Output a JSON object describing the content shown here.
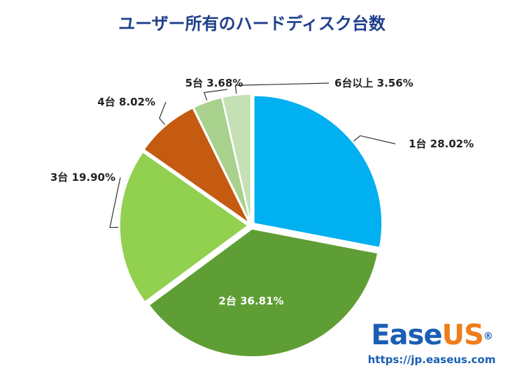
{
  "brand": {
    "logo_part1": "Ease",
    "logo_part2": "US",
    "logo_mark": "®",
    "url": "https://jp.easeus.com",
    "colors": {
      "ease": "#1a5fb4",
      "us": "#ef7d1a"
    }
  },
  "chart_data": {
    "type": "pie",
    "title": "ユーザー所有のハードディスク台数",
    "slices": [
      {
        "label": "1台",
        "value": 28.02,
        "display": "28.02%",
        "color": "#00b0f0"
      },
      {
        "label": "2台",
        "value": 36.81,
        "display": "36.81%",
        "color": "#5f9e34"
      },
      {
        "label": "3台",
        "value": 19.9,
        "display": "19.90%",
        "color": "#92d050"
      },
      {
        "label": "4台",
        "value": 8.02,
        "display": "8.02%",
        "color": "#c55a11"
      },
      {
        "label": "5台",
        "value": 3.68,
        "display": "3.68%",
        "color": "#a9d18e"
      },
      {
        "label": "6台以上",
        "value": 3.56,
        "display": "3.56%",
        "color": "#c5e0b4"
      }
    ],
    "start_direction": "top",
    "direction": "clockwise",
    "exploded": true,
    "legend": "none"
  }
}
